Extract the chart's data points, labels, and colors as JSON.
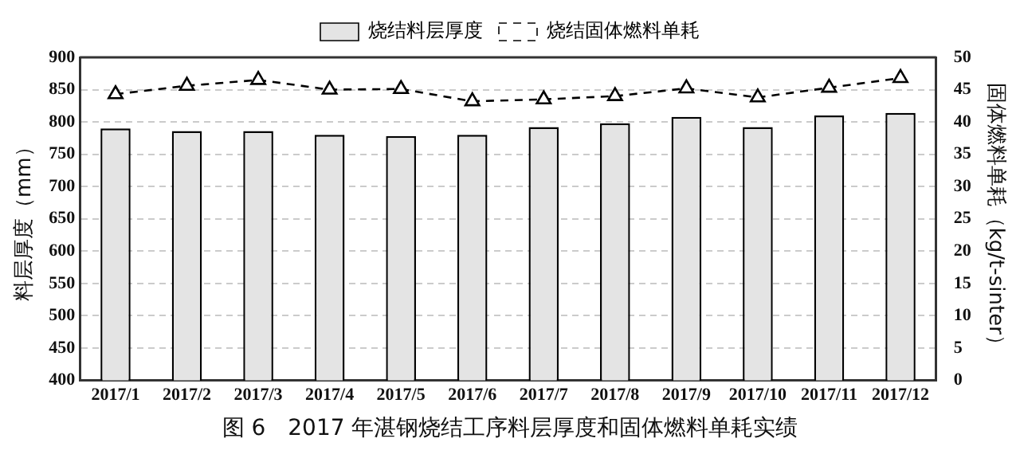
{
  "chart_data": {
    "type": "bar",
    "categories": [
      "2017/1",
      "2017/2",
      "2017/3",
      "2017/4",
      "2017/5",
      "2017/6",
      "2017/7",
      "2017/8",
      "2017/9",
      "2017/10",
      "2017/11",
      "2017/12"
    ],
    "series": [
      {
        "name": "烧结料层厚度",
        "color": "#e4e4e4",
        "values": [
          790,
          786,
          786,
          780,
          778,
          780,
          792,
          798,
          808,
          792,
          810,
          814
        ]
      },
      {
        "name": "烧结固体燃料单耗",
        "type": "line",
        "axis": "y2",
        "color": "#000000",
        "marker": "triangle",
        "line_style": "dashed",
        "values": [
          44.3,
          45.6,
          46.5,
          45.0,
          45.1,
          43.2,
          43.5,
          44.0,
          45.2,
          43.8,
          45.3,
          46.8
        ]
      }
    ],
    "ylabel": "料层厚度（mm）",
    "y2label": "固体燃料单耗（kg/t-sinter）",
    "ylim": [
      400,
      900
    ],
    "yticks": [
      400,
      450,
      500,
      550,
      600,
      650,
      700,
      750,
      800,
      850,
      900
    ],
    "y2lim": [
      0,
      50
    ],
    "y2ticks": [
      0,
      5,
      10,
      15,
      20,
      25,
      30,
      35,
      40,
      45,
      50
    ],
    "grid": "y",
    "legend": "top",
    "annotations": [
      "图 6　2017 年湛钢烧结工序料层厚度和固体燃料单耗实绩"
    ]
  }
}
